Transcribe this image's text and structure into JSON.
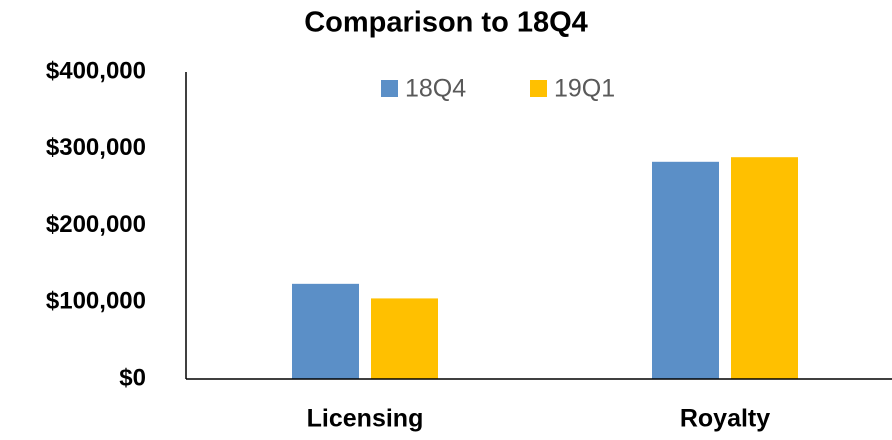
{
  "chart_data": {
    "type": "bar",
    "title": "Comparison to 18Q4",
    "categories": [
      "Licensing",
      "Royalty"
    ],
    "series": [
      {
        "name": "18Q4",
        "color": "#5b8fc7",
        "values": [
          124000,
          283000
        ]
      },
      {
        "name": "19Q1",
        "color": "#ffc000",
        "values": [
          105000,
          289000
        ]
      }
    ],
    "ylim": [
      0,
      400000
    ],
    "yticks": [
      {
        "value": 0,
        "label": "$0"
      },
      {
        "value": 100000,
        "label": "$100,000"
      },
      {
        "value": 200000,
        "label": "$200,000"
      },
      {
        "value": 300000,
        "label": "$300,000"
      },
      {
        "value": 400000,
        "label": "$400,000"
      }
    ],
    "grid": false,
    "legend": "top"
  }
}
